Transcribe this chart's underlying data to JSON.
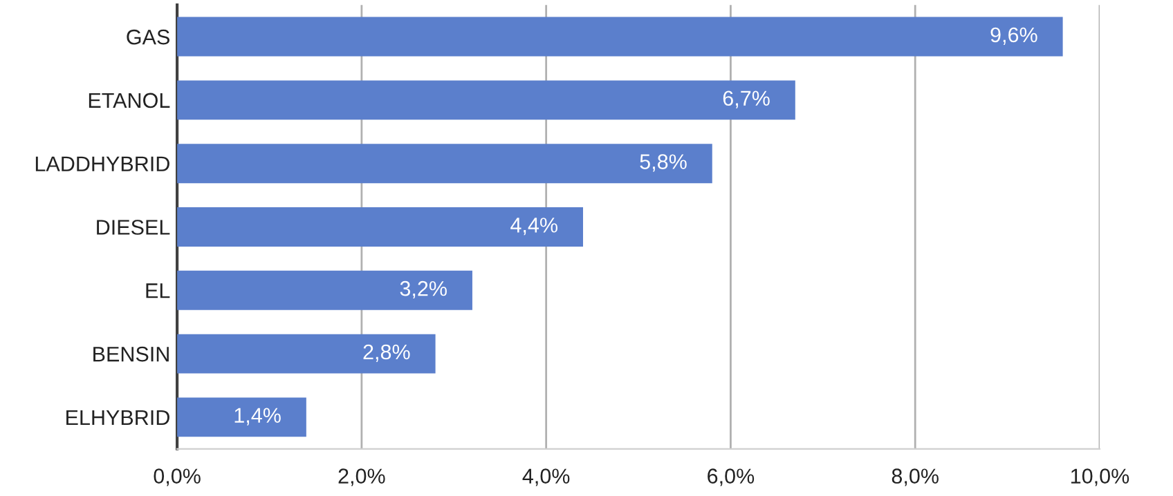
{
  "chart_data": {
    "type": "bar",
    "orientation": "horizontal",
    "categories": [
      "GAS",
      "ETANOL",
      "LADDHYBRID",
      "DIESEL",
      "EL",
      "BENSIN",
      "ELHYBRID"
    ],
    "values": [
      9.6,
      6.7,
      5.8,
      4.4,
      3.2,
      2.8,
      1.4
    ],
    "value_labels": [
      "9,6%",
      "6,7%",
      "5,8%",
      "4,4%",
      "3,2%",
      "2,8%",
      "1,4%"
    ],
    "color": "#5b7fcc",
    "xlim": [
      0,
      10
    ],
    "xticks": [
      {
        "value": 0,
        "label": "0,0%"
      },
      {
        "value": 2,
        "label": "2,0%"
      },
      {
        "value": 4,
        "label": "4,0%"
      },
      {
        "value": 6,
        "label": "6,0%"
      },
      {
        "value": 8,
        "label": "8,0%"
      },
      {
        "value": 10,
        "label": "10,0%"
      }
    ],
    "grid": "x",
    "legend": false
  }
}
